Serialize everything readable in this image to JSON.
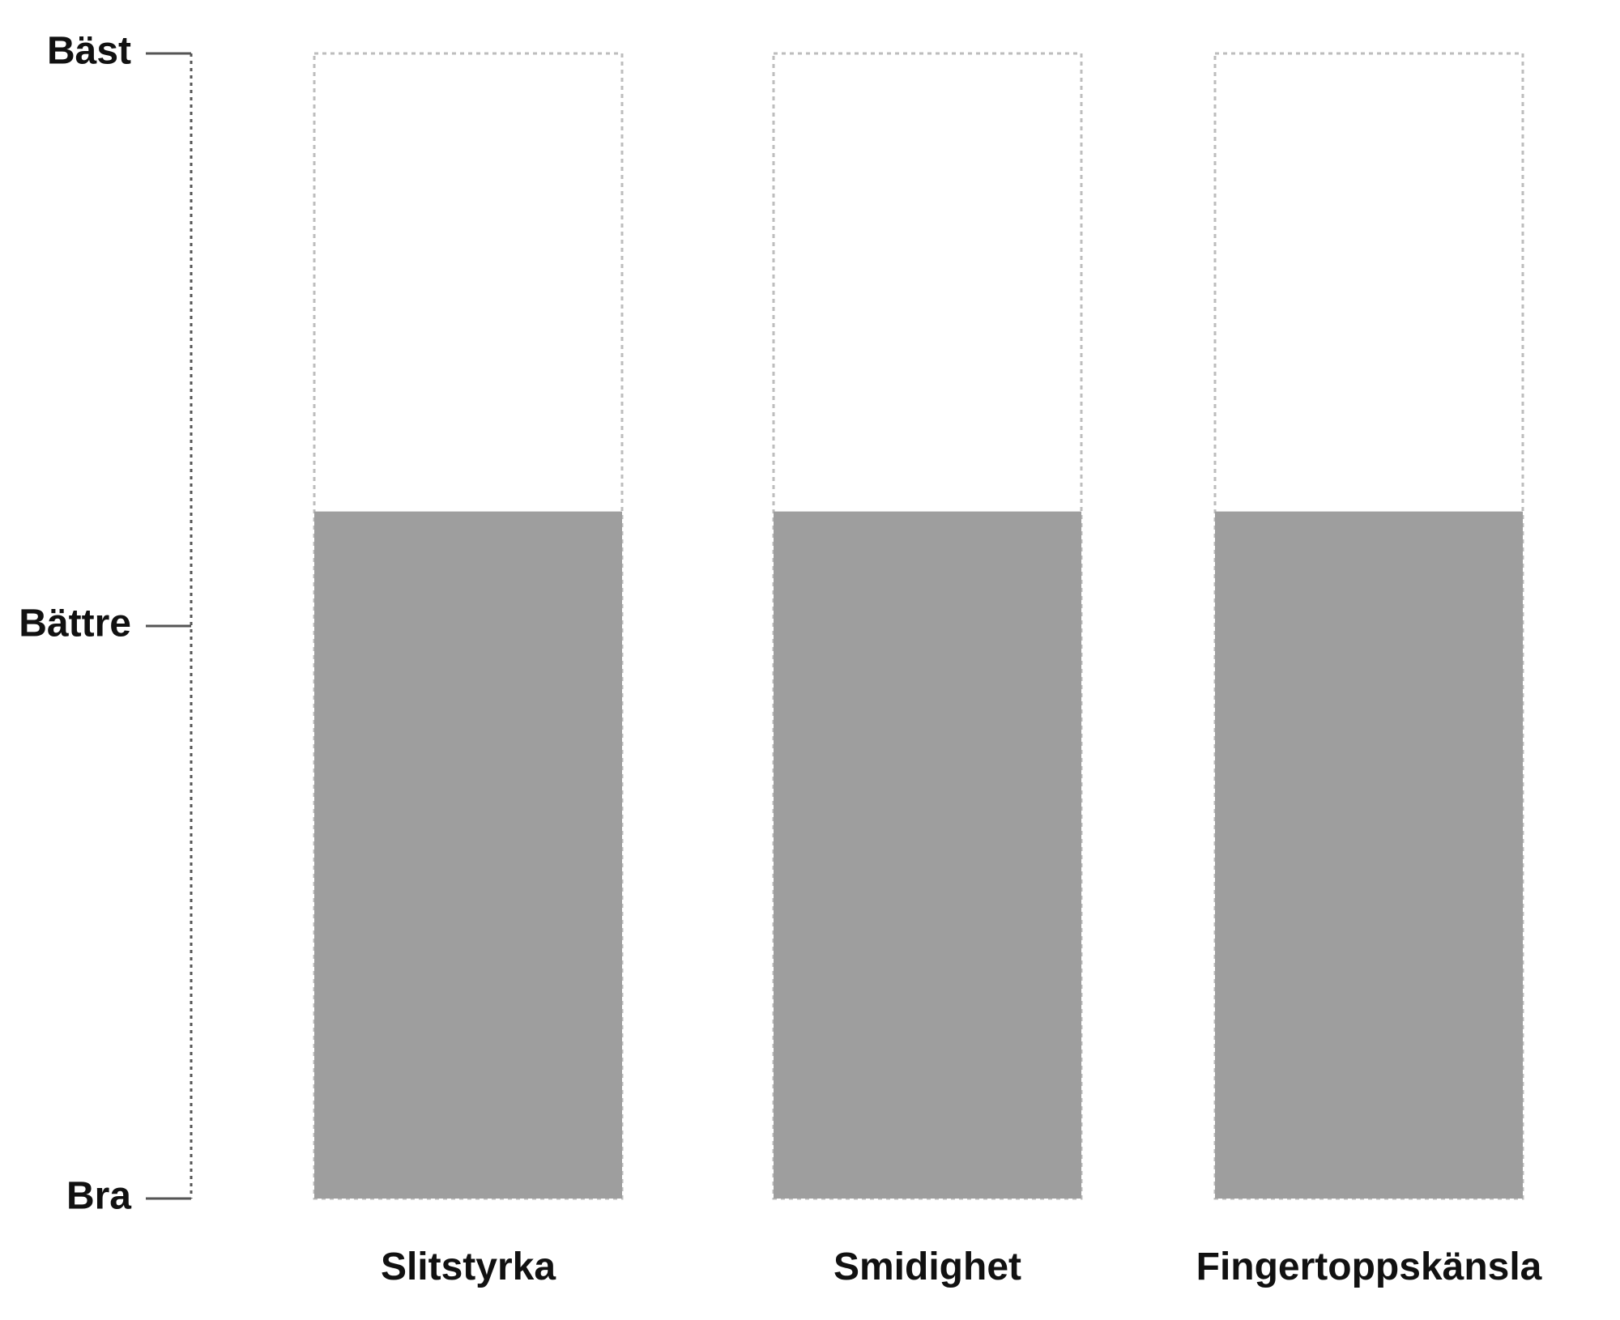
{
  "chart_data": {
    "type": "bar",
    "categories": [
      "Slitstyrka",
      "Smidighet",
      "Fingertoppskänsla"
    ],
    "values": [
      60,
      60,
      60
    ],
    "ylim": [
      0,
      100
    ],
    "y_ticks": [
      {
        "label": "Bra",
        "value": 0
      },
      {
        "label": "Bättre",
        "value": 50
      },
      {
        "label": "Bäst",
        "value": 100
      }
    ],
    "title": "",
    "xlabel": "",
    "ylabel": "",
    "grid": false,
    "legend": "none",
    "colors": {
      "bar_fill": "#9e9e9e",
      "outline_dashed": "#bdbdbd",
      "axis": "#555555",
      "text": "#111111"
    }
  }
}
